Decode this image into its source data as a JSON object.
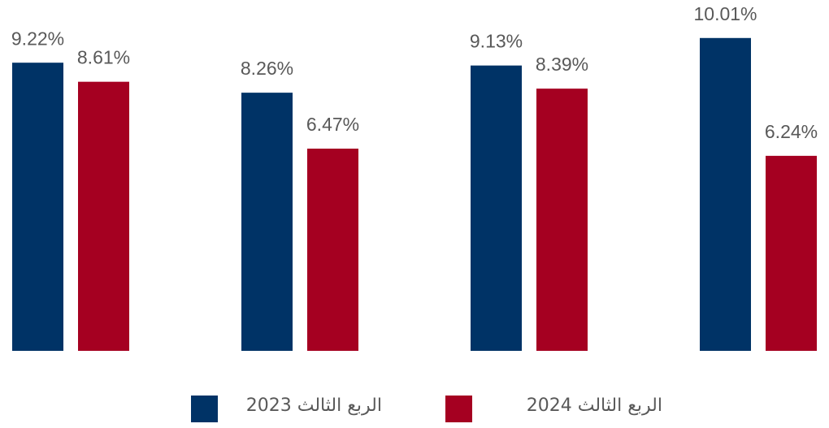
{
  "chart_data": {
    "type": "bar",
    "categories": [
      null,
      null,
      null,
      null
    ],
    "series": [
      {
        "name": "الربع الثالث 2023",
        "color": "#003366",
        "values": [
          9.22,
          8.26,
          9.13,
          10.01
        ],
        "value_labels": [
          "9.22%",
          "8.26%",
          "9.13%",
          "10.01%"
        ]
      },
      {
        "name": "الربع الثالث 2024",
        "color": "#a50021",
        "values": [
          8.61,
          6.47,
          8.39,
          6.24
        ],
        "value_labels": [
          "8.61%",
          "6.47%",
          "8.39%",
          "6.24%"
        ]
      }
    ],
    "ylim": [
      0,
      11.2
    ]
  }
}
